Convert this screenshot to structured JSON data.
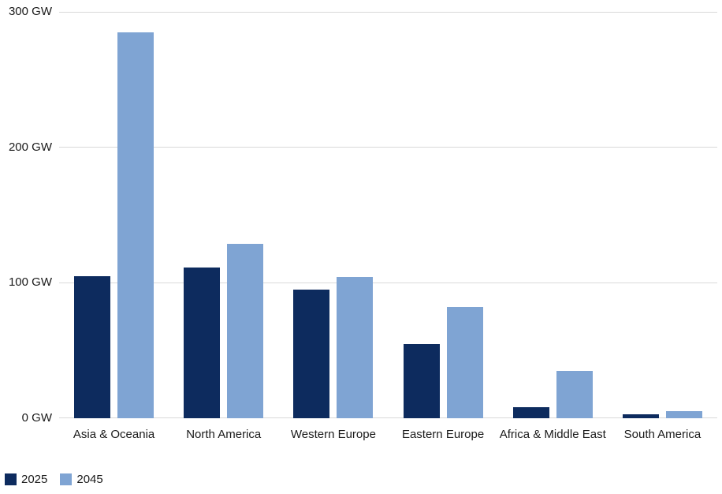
{
  "chart_data": {
    "type": "bar",
    "title": "",
    "xlabel": "",
    "ylabel": "",
    "unit": "GW",
    "ylim": [
      0,
      300
    ],
    "y_ticks": [
      0,
      100,
      200,
      300
    ],
    "y_tick_labels": [
      "0 GW",
      "100 GW",
      "200 GW",
      "300 GW"
    ],
    "grid": true,
    "legend_position": "bottom-left",
    "categories": [
      "Asia & Oceania",
      "North America",
      "Western Europe",
      "Eastern Europe",
      "Africa & Middle East",
      "South America"
    ],
    "series": [
      {
        "name": "2025",
        "color": "#0d2b5e",
        "values": [
          105,
          111,
          95,
          55,
          8,
          3
        ]
      },
      {
        "name": "2045",
        "color": "#7fa4d3",
        "values": [
          285,
          129,
          104,
          82,
          35,
          5
        ]
      }
    ]
  }
}
